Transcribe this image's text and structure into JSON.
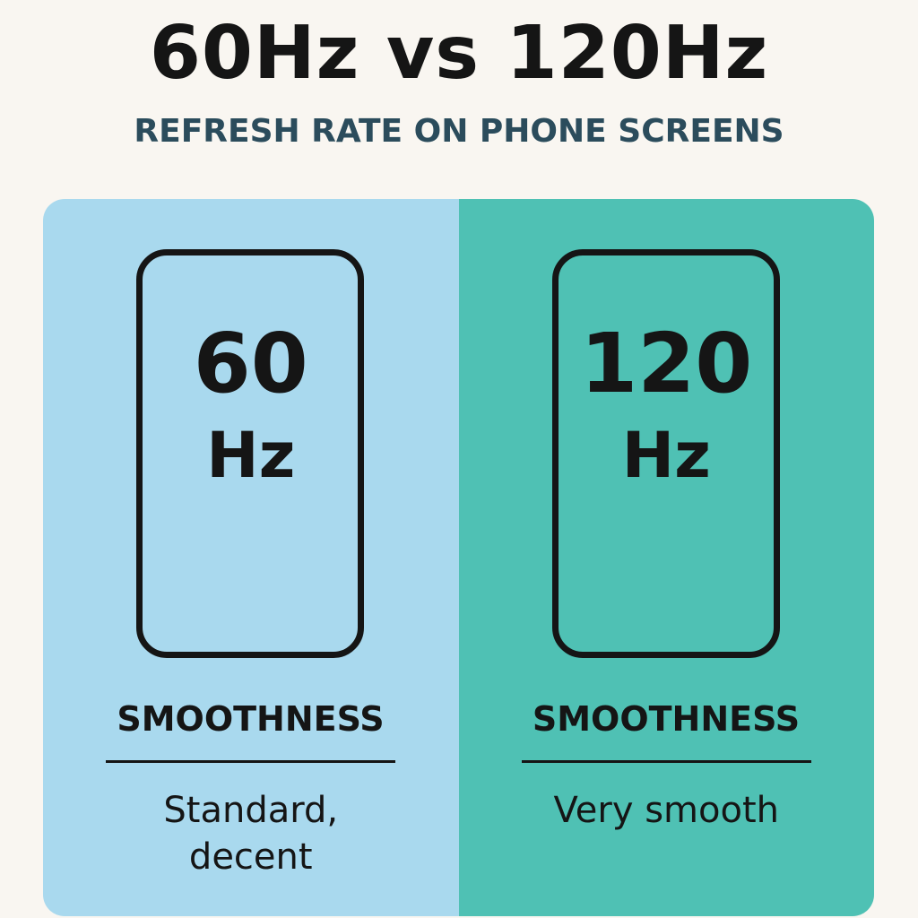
{
  "header": {
    "title": "60Hz vs 120Hz",
    "subtitle": "REFRESH RATE ON PHONE SCREENS"
  },
  "panels": [
    {
      "rate": "60",
      "unit": "Hz",
      "label": "SMOOTHNESS",
      "description": [
        "Standard,",
        "decent"
      ]
    },
    {
      "rate": "120",
      "unit": "Hz",
      "label": "SMOOTHNESS",
      "description": [
        "Very smooth"
      ]
    }
  ]
}
